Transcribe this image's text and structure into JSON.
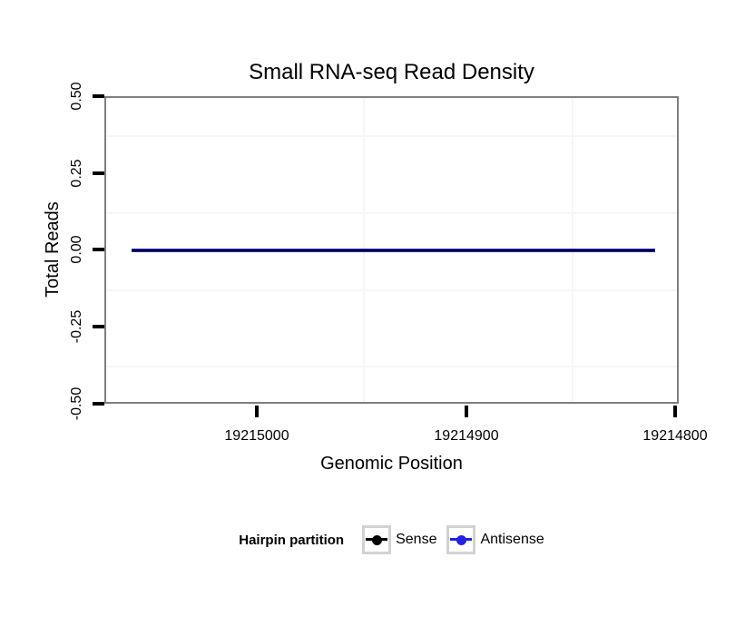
{
  "title": "Small RNA-seq Read Density",
  "axes": {
    "x": {
      "label": "Genomic Position",
      "ticks": [
        "19215000",
        "19214900",
        "19214800"
      ]
    },
    "y": {
      "label": "Total Reads",
      "ticks": [
        "0.50",
        "0.25",
        "0.00",
        "-0.25",
        "-0.50"
      ]
    }
  },
  "legend": {
    "title": "Hairpin partition",
    "entries": [
      {
        "label": "Sense",
        "color": "#000000"
      },
      {
        "label": "Antisense",
        "color": "#2222e0"
      }
    ]
  },
  "colors": {
    "panel_border": "#7f7f7f",
    "grid_minor": "#f6f6f6",
    "tick_mark": "#000000",
    "sense_line": "#000000",
    "antisense_line": "#2222e0",
    "background": "#ffffff"
  },
  "chart_data": {
    "type": "line",
    "title": "Small RNA-seq Read Density",
    "xlabel": "Genomic Position",
    "ylabel": "Total Reads",
    "x_axis": {
      "reversed": true,
      "ticks": [
        19215000,
        19214900,
        19214800
      ],
      "range": [
        19215075,
        19214795
      ],
      "minor_gridlines": [
        19214950,
        19214850
      ]
    },
    "ylim": [
      -0.5,
      0.5
    ],
    "yticks": [
      0.5,
      0.25,
      0.0,
      -0.25,
      -0.5
    ],
    "y_minor_gridlines": [
      0.375,
      0.125,
      -0.125,
      -0.375
    ],
    "series": [
      {
        "name": "Sense",
        "color": "#000000",
        "x": [
          19215060,
          19214810
        ],
        "y": [
          0,
          0
        ]
      },
      {
        "name": "Antisense",
        "color": "#2222e0",
        "x": [
          19215060,
          19214810
        ],
        "y": [
          0,
          0
        ]
      }
    ],
    "legend_title": "Hairpin partition",
    "legend_position": "bottom",
    "grid": "minor-only"
  }
}
